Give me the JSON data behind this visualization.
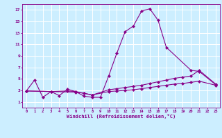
{
  "xlabel": "Windchill (Refroidissement éolien,°C)",
  "background_color": "#cceeff",
  "grid_color": "#ffffff",
  "line_color": "#880088",
  "xlim": [
    -0.5,
    23.5
  ],
  "ylim": [
    0,
    18
  ],
  "xticks": [
    0,
    1,
    2,
    3,
    4,
    5,
    6,
    7,
    8,
    9,
    10,
    11,
    12,
    13,
    14,
    15,
    16,
    17,
    18,
    19,
    20,
    21,
    22,
    23
  ],
  "yticks": [
    1,
    3,
    5,
    7,
    9,
    11,
    13,
    15,
    17
  ],
  "line1_x": [
    0,
    1,
    2,
    3,
    4,
    5,
    6,
    7,
    8,
    9,
    10,
    11,
    12,
    13,
    14,
    15,
    16,
    17,
    20,
    21,
    23
  ],
  "line1_y": [
    2.9,
    4.8,
    1.8,
    2.8,
    2.1,
    3.2,
    2.8,
    2.0,
    1.8,
    1.8,
    5.5,
    9.5,
    13.2,
    14.2,
    16.8,
    17.2,
    15.2,
    10.5,
    6.5,
    6.3,
    4.0
  ],
  "line2_x": [
    0,
    3,
    5,
    6,
    7,
    8,
    10,
    11,
    12,
    13,
    14,
    15,
    16,
    17,
    18,
    19,
    20,
    21,
    23
  ],
  "line2_y": [
    2.9,
    2.8,
    2.9,
    2.8,
    2.5,
    2.2,
    3.1,
    3.3,
    3.5,
    3.7,
    3.9,
    4.2,
    4.5,
    4.8,
    5.1,
    5.3,
    5.5,
    6.5,
    4.1
  ],
  "line3_x": [
    0,
    6,
    7,
    8,
    10,
    11,
    12,
    13,
    14,
    15,
    16,
    17,
    18,
    19,
    20,
    21,
    23
  ],
  "line3_y": [
    2.9,
    2.7,
    2.5,
    2.2,
    2.8,
    2.9,
    3.0,
    3.1,
    3.3,
    3.5,
    3.7,
    3.9,
    4.1,
    4.2,
    4.4,
    4.6,
    3.9
  ]
}
